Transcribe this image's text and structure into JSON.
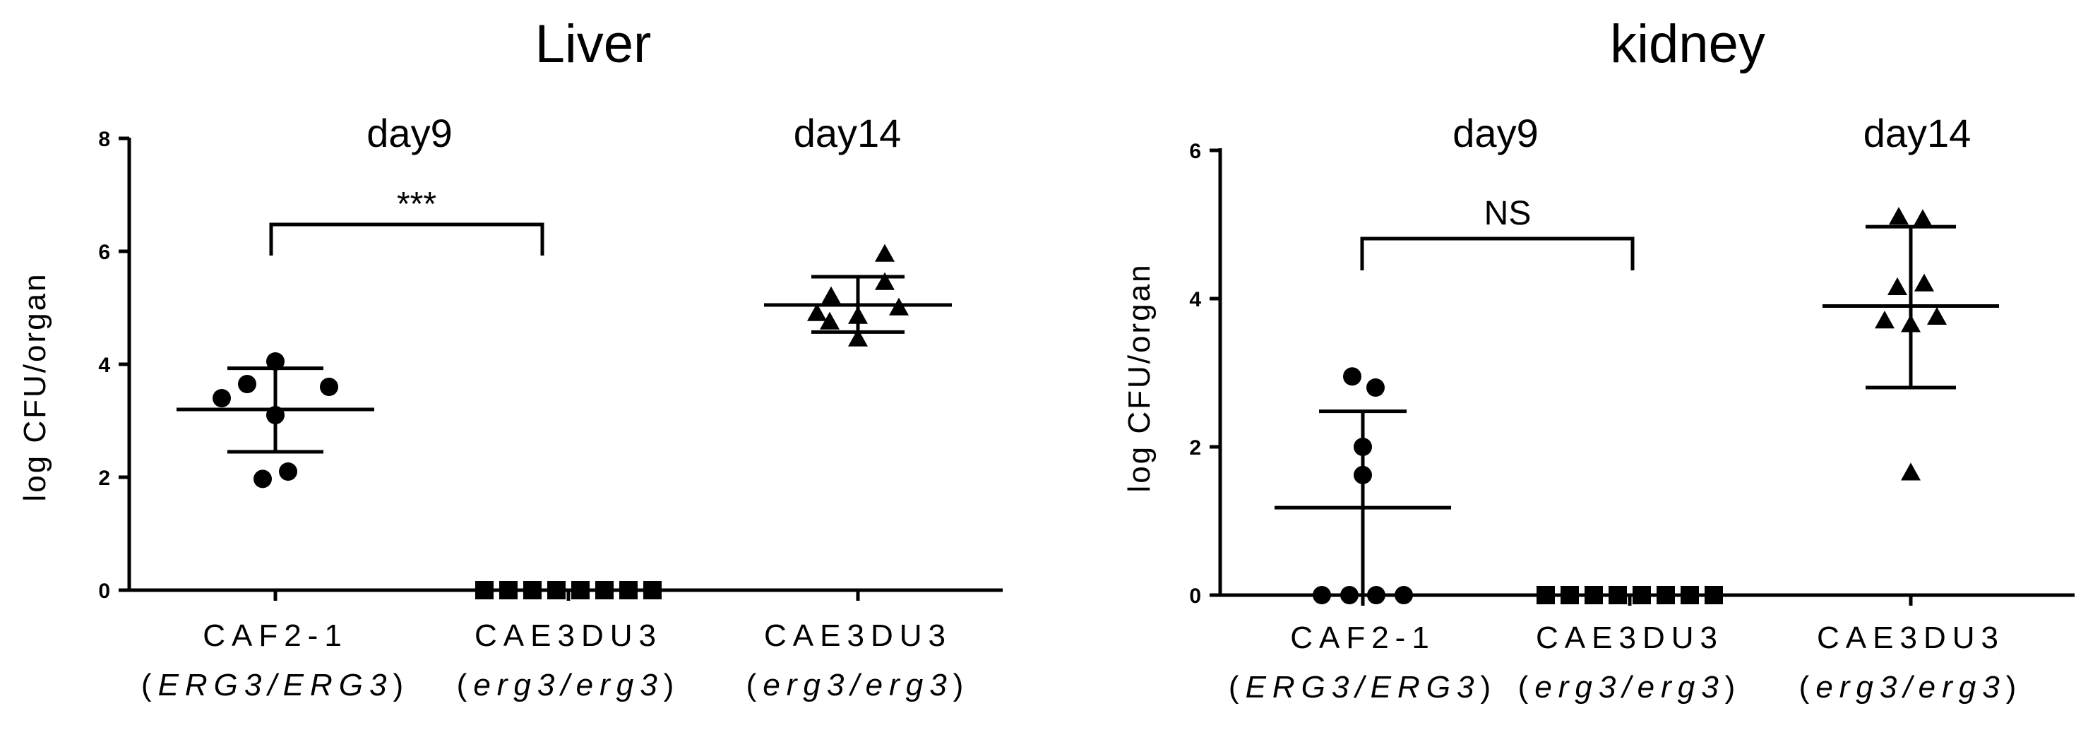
{
  "chart_data": [
    {
      "type": "scatter",
      "title": "Liver",
      "ylabel": "log CFU/organ",
      "ylim": [
        0,
        8
      ],
      "yticks": [
        "0",
        "2",
        "4",
        "6",
        "8"
      ],
      "group_labels": [
        "day9",
        "day14"
      ],
      "significance": "***",
      "categories": [
        {
          "line1": "CAF2-1",
          "line2_pre": "(",
          "line2_it": "ERG3/ERG3",
          "line2_post": ")"
        },
        {
          "line1": "CAE3DU3",
          "line2_pre": "(",
          "line2_it": "erg3/erg3",
          "line2_post": ")"
        },
        {
          "line1": "CAE3DU3",
          "line2_pre": "(",
          "line2_it": "erg3/erg3",
          "line2_post": ")"
        }
      ],
      "series": [
        {
          "marker": "circle",
          "values": [
            4.05,
            3.65,
            3.6,
            3.4,
            3.1,
            2.1,
            1.97
          ],
          "mean": 3.2,
          "sd_low": 2.45,
          "sd_high": 3.93
        },
        {
          "marker": "square",
          "values": [
            0,
            0,
            0,
            0,
            0,
            0,
            0,
            0
          ],
          "mean": null,
          "sd_low": null,
          "sd_high": null
        },
        {
          "marker": "triangle",
          "values": [
            5.95,
            5.45,
            5.2,
            5.0,
            4.9,
            4.85,
            4.75,
            4.45
          ],
          "mean": 5.05,
          "sd_low": 4.57,
          "sd_high": 5.55
        }
      ]
    },
    {
      "type": "scatter",
      "title": "kidney",
      "ylabel": "log CFU/organ",
      "ylim": [
        0,
        6
      ],
      "yticks": [
        "0",
        "2",
        "4",
        "6"
      ],
      "group_labels": [
        "day9",
        "day14"
      ],
      "significance": "NS",
      "categories": [
        {
          "line1": "CAF2-1",
          "line2_pre": "(",
          "line2_it": "ERG3/ERG3",
          "line2_post": ")"
        },
        {
          "line1": "CAE3DU3",
          "line2_pre": "(",
          "line2_it": "erg3/erg3",
          "line2_post": ")"
        },
        {
          "line1": "CAE3DU3",
          "line2_pre": "(",
          "line2_it": "erg3/erg3",
          "line2_post": ")"
        }
      ],
      "series": [
        {
          "marker": "circle",
          "values": [
            2.95,
            2.8,
            2.0,
            1.62,
            0,
            0,
            0,
            0
          ],
          "mean": 1.18,
          "sd_low": 0,
          "sd_high": 2.48
        },
        {
          "marker": "square",
          "values": [
            0,
            0,
            0,
            0,
            0,
            0,
            0,
            0
          ],
          "mean": null,
          "sd_low": null,
          "sd_high": null
        },
        {
          "marker": "triangle",
          "values": [
            5.1,
            5.07,
            4.2,
            4.15,
            3.75,
            3.7,
            3.65,
            1.65
          ],
          "mean": 3.9,
          "sd_low": 2.8,
          "sd_high": 4.97
        }
      ]
    }
  ]
}
